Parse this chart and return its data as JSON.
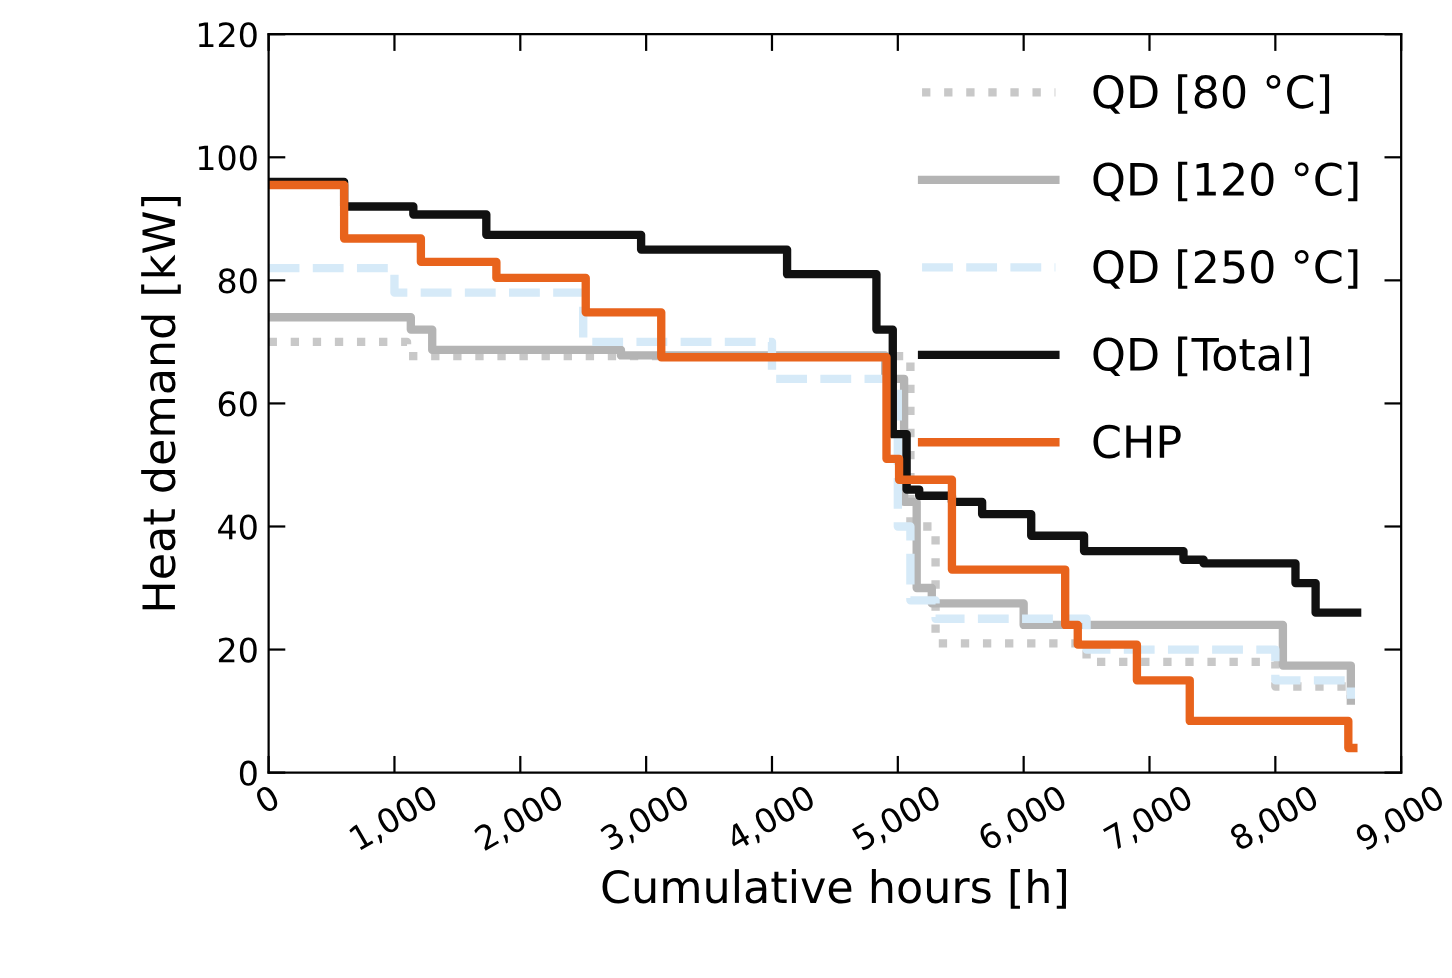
{
  "chart_data": {
    "type": "step",
    "xlabel": "Cumulative hours [h]",
    "ylabel": "Heat demand [kW]",
    "xlim": [
      0,
      9000
    ],
    "ylim": [
      0,
      120
    ],
    "xticks": [
      {
        "value": 0,
        "label": "0"
      },
      {
        "value": 1000,
        "label": "1,000"
      },
      {
        "value": 2000,
        "label": "2,000"
      },
      {
        "value": 3000,
        "label": "3,000"
      },
      {
        "value": 4000,
        "label": "4,000"
      },
      {
        "value": 5000,
        "label": "5,000"
      },
      {
        "value": 6000,
        "label": "6,000"
      },
      {
        "value": 7000,
        "label": "7,000"
      },
      {
        "value": 8000,
        "label": "8,000"
      },
      {
        "value": 9000,
        "label": "9,000"
      }
    ],
    "yticks": [
      0,
      20,
      40,
      60,
      80,
      100,
      120
    ],
    "grid": false,
    "legend": "top right",
    "series": [
      {
        "name": "QD [80 °C]",
        "color": "#c8c8c8",
        "line_style": "dotted",
        "x": [
          0,
          1100,
          4900,
          5100,
          5300,
          6500,
          8000,
          8600
        ],
        "values": [
          70,
          67.7,
          67.7,
          40,
          21,
          18,
          14,
          12
        ]
      },
      {
        "name": "QD [120 °C]",
        "color": "#b4b4b4",
        "line_style": "solid",
        "x": [
          0,
          1130,
          1300,
          2800,
          4900,
          5050,
          5150,
          5270,
          6000,
          8060,
          8600
        ],
        "values": [
          74,
          72,
          68.7,
          67.8,
          64,
          44,
          30,
          27.5,
          24,
          17.4,
          11.7
        ]
      },
      {
        "name": "QD [250 °C]",
        "color": "#d6eaf8",
        "line_style": "dashed",
        "x": [
          0,
          1000,
          2500,
          4000,
          5000,
          5100,
          5300,
          6500,
          8000,
          8600
        ],
        "values": [
          82,
          78,
          70,
          64,
          40,
          28,
          25,
          20,
          15,
          12
        ]
      },
      {
        "name": "QD [Total]",
        "color": "#111111",
        "line_style": "solid",
        "x": [
          0,
          600,
          1150,
          1730,
          2960,
          4120,
          4830,
          4960,
          5070,
          5170,
          5430,
          5670,
          6060,
          6480,
          7270,
          7430,
          8160,
          8320,
          8610,
          8650
        ],
        "values": [
          96,
          92,
          90.7,
          87.4,
          85,
          81,
          72,
          55,
          46,
          45,
          44,
          42,
          38.5,
          36,
          34.6,
          34,
          30.8,
          26,
          26,
          26
        ]
      },
      {
        "name": "CHP",
        "color": "#e8631c",
        "line_style": "solid",
        "x": [
          0,
          600,
          1210,
          1810,
          2520,
          3120,
          4910,
          5010,
          5170,
          5430,
          6330,
          6430,
          6900,
          7320,
          8580,
          8620
        ],
        "values": [
          95.5,
          86.8,
          83,
          80.4,
          74.8,
          67.5,
          51,
          47.6,
          47.6,
          33,
          24,
          20.8,
          15,
          8.4,
          4,
          4
        ]
      }
    ]
  }
}
